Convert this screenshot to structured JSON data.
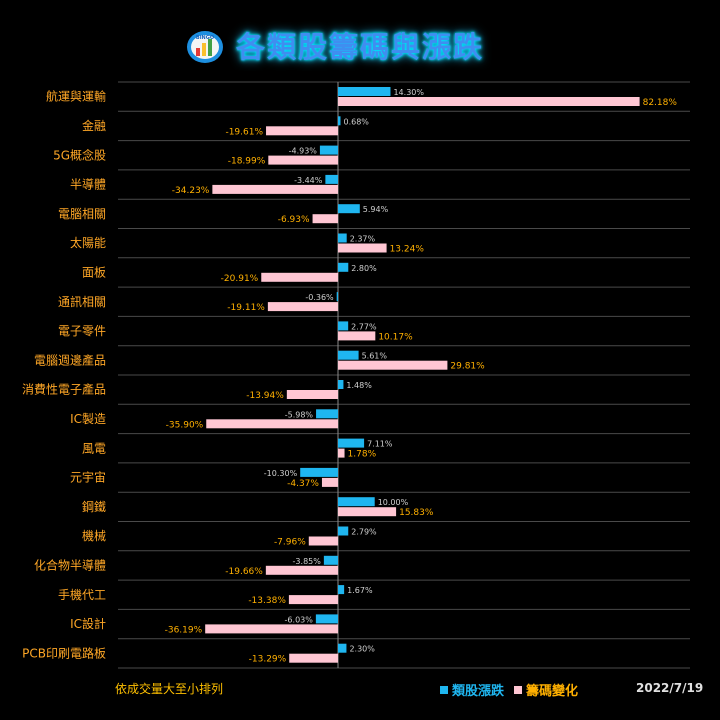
{
  "title": "各類股籌碼與漲跌",
  "logo_text": "BINGO",
  "footnote": "依成交量大至小排列",
  "date": "2022/7/19",
  "colors": {
    "series_a": "#1fb6f0",
    "series_b": "#ffc6d3",
    "category_label": "#ffa726",
    "label_a": "#d0d0d0",
    "label_b": "#ffb000",
    "grid": "#4a4a4a",
    "title": "#3f8ef0"
  },
  "chart_data": {
    "type": "bar",
    "orientation": "horizontal",
    "categories": [
      "航運與運輸",
      "金融",
      "5G概念股",
      "半導體",
      "電腦相關",
      "太陽能",
      "面板",
      "通訊相關",
      "電子零件",
      "電腦週邊產品",
      "消費性電子產品",
      "IC製造",
      "風電",
      "元宇宙",
      "鋼鐵",
      "機械",
      "化合物半導體",
      "手機代工",
      "IC設計",
      "PCB印刷電路板"
    ],
    "series": [
      {
        "name": "類股漲跌",
        "values": [
          14.3,
          0.68,
          -4.93,
          -3.44,
          5.94,
          2.37,
          2.8,
          -0.36,
          2.77,
          5.61,
          1.48,
          -5.98,
          7.11,
          -10.3,
          10.0,
          2.79,
          -3.85,
          1.67,
          -6.03,
          2.3
        ],
        "labels": [
          "14.30%",
          "0.68%",
          "-4.93%",
          "-3.44%",
          "5.94%",
          "2.37%",
          "2.80%",
          "-0.36%",
          "2.77%",
          "5.61%",
          "1.48%",
          "-5.98%",
          "7.11%",
          "-10.30%",
          "10.00%",
          "2.79%",
          "-3.85%",
          "1.67%",
          "-6.03%",
          "2.30%"
        ]
      },
      {
        "name": "籌碼變化",
        "values": [
          82.18,
          -19.61,
          -18.99,
          -34.23,
          -6.93,
          13.24,
          -20.91,
          -19.11,
          10.17,
          29.81,
          -13.94,
          -35.9,
          1.78,
          -4.37,
          15.83,
          -7.96,
          -19.66,
          -13.38,
          -36.19,
          -13.29
        ],
        "labels": [
          "82.18%",
          "-19.61%",
          "-18.99%",
          "-34.23%",
          "-6.93%",
          "13.24%",
          "-20.91%",
          "-19.11%",
          "10.17%",
          "29.81%",
          "-13.94%",
          "-35.90%",
          "1.78%",
          "-4.37%",
          "15.83%",
          "-7.96%",
          "-19.66%",
          "-13.38%",
          "-36.19%",
          "-13.29%"
        ]
      }
    ],
    "xlim": [
      -40,
      85
    ],
    "grid": true,
    "legend": "bottom"
  }
}
